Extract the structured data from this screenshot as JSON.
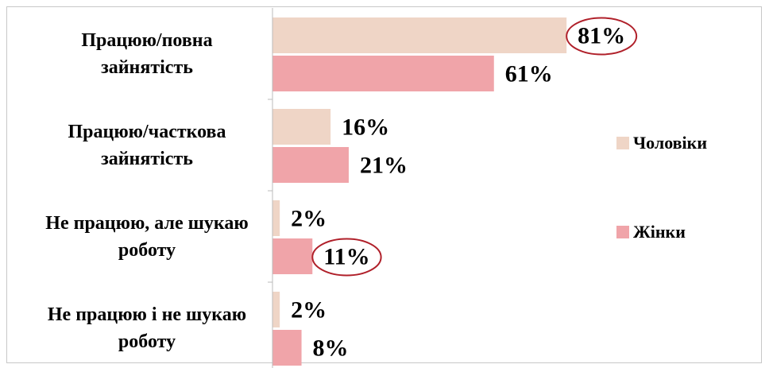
{
  "chart_data": {
    "type": "barh",
    "categories": [
      "Працюю/повна зайнятість",
      "Працюю/часткова зайнятість",
      "Не працюю, але шукаю роботу",
      "Не працюю і не шукаю роботу"
    ],
    "series": [
      {
        "name": "Чоловіки",
        "color": "#efd5c6",
        "values": [
          81,
          16,
          2,
          2
        ],
        "value_labels": [
          "81%",
          "16%",
          "2%",
          "2%"
        ]
      },
      {
        "name": "Жінки",
        "color": "#f0a4a9",
        "values": [
          61,
          21,
          11,
          8
        ],
        "value_labels": [
          "61%",
          "21%",
          "11%",
          "8%"
        ]
      }
    ],
    "xlim": [
      0,
      100
    ],
    "highlighted": [
      {
        "series": 0,
        "index": 0
      },
      {
        "series": 1,
        "index": 2
      }
    ],
    "highlight_color": "#b0202a",
    "legend": "right"
  }
}
